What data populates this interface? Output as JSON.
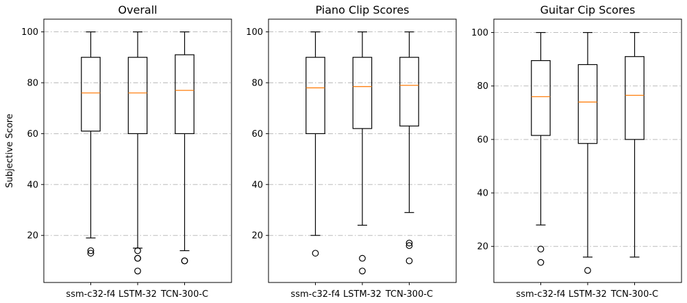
{
  "chart_data": [
    {
      "type": "box",
      "title": "Overall",
      "xlabel": "",
      "ylabel": "Subjective Score",
      "categories": [
        "ssm-c32-f4",
        "LSTM-32",
        "TCN-300-C"
      ],
      "ylim": [
        1.5,
        105
      ],
      "yticks": [
        20,
        40,
        60,
        80,
        100
      ],
      "grid": true,
      "boxes": [
        {
          "whislo": 19,
          "q1": 61,
          "med": 76,
          "q3": 90,
          "whishi": 100,
          "fliers": [
            13,
            14
          ]
        },
        {
          "whislo": 15,
          "q1": 60,
          "med": 76,
          "q3": 90,
          "whishi": 100,
          "fliers": [
            14,
            11,
            11,
            6
          ]
        },
        {
          "whislo": 14,
          "q1": 60,
          "med": 77,
          "q3": 91,
          "whishi": 100,
          "fliers": [
            10,
            10
          ]
        }
      ]
    },
    {
      "type": "box",
      "title": "Piano Clip Scores",
      "xlabel": "",
      "ylabel": "",
      "categories": [
        "ssm-c32-f4",
        "LSTM-32",
        "TCN-300-C"
      ],
      "ylim": [
        1.5,
        105
      ],
      "yticks": [
        20,
        40,
        60,
        80,
        100
      ],
      "grid": true,
      "boxes": [
        {
          "whislo": 20,
          "q1": 60,
          "med": 78,
          "q3": 90,
          "whishi": 100,
          "fliers": [
            13
          ]
        },
        {
          "whislo": 24,
          "q1": 62,
          "med": 78.5,
          "q3": 90,
          "whishi": 100,
          "fliers": [
            11,
            6
          ]
        },
        {
          "whislo": 29,
          "q1": 63,
          "med": 79,
          "q3": 90,
          "whishi": 100,
          "fliers": [
            17,
            16,
            10
          ]
        }
      ]
    },
    {
      "type": "box",
      "title": "Guitar Cip Scores",
      "xlabel": "",
      "ylabel": "",
      "categories": [
        "ssm-c32-f4",
        "LSTM-32",
        "TCN-300-C"
      ],
      "ylim": [
        6.5,
        105
      ],
      "yticks": [
        20,
        40,
        60,
        80,
        100
      ],
      "grid": true,
      "boxes": [
        {
          "whislo": 28,
          "q1": 61.5,
          "med": 76,
          "q3": 89.5,
          "whishi": 100,
          "fliers": [
            19,
            14
          ]
        },
        {
          "whislo": 16,
          "q1": 58.5,
          "med": 74,
          "q3": 88,
          "whishi": 100,
          "fliers": [
            11
          ]
        },
        {
          "whislo": 16,
          "q1": 60,
          "med": 76.5,
          "q3": 91,
          "whishi": 100,
          "fliers": []
        }
      ]
    }
  ],
  "colors": {
    "box": "#000000",
    "median": "#ff7f0e",
    "grid": "#b0b0b0",
    "background": "#ffffff"
  }
}
